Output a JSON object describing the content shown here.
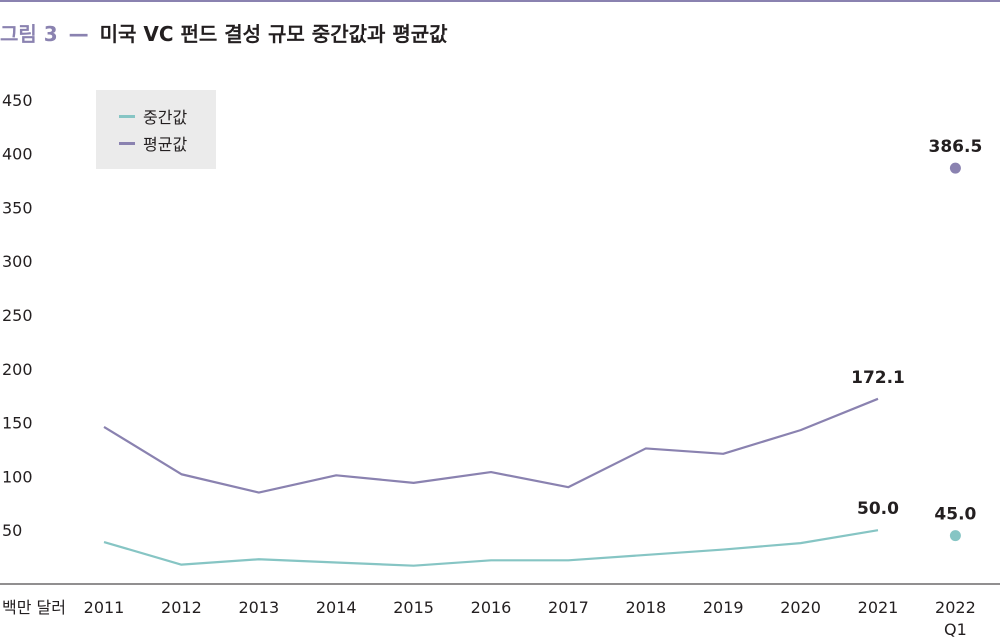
{
  "figure": {
    "label": "그림 3",
    "dash": "—",
    "title": "미국 VC 펀드 결성 규모 중간값과 평균값"
  },
  "chart_data": {
    "type": "line",
    "ylabel": "백만 달러",
    "ylim": [
      0,
      450
    ],
    "yticks": [
      "50",
      "100",
      "150",
      "200",
      "250",
      "300",
      "350",
      "400",
      "450"
    ],
    "categories": [
      "2011",
      "2012",
      "2013",
      "2014",
      "2015",
      "2016",
      "2017",
      "2018",
      "2019",
      "2020",
      "2021",
      "2022\nQ1"
    ],
    "legend_position": "top-left",
    "grid": false,
    "series": [
      {
        "name": "중간값",
        "color": "#86c5c4",
        "values": [
          39,
          18,
          23,
          20,
          17,
          22,
          22,
          27,
          32,
          38,
          50.0,
          45.0
        ],
        "point_only_last": true,
        "labels": [
          {
            "index": 10,
            "text": "50.0"
          },
          {
            "index": 11,
            "text": "45.0"
          }
        ]
      },
      {
        "name": "평균값",
        "color": "#8a82b0",
        "values": [
          146,
          102,
          85,
          101,
          94,
          104,
          90,
          126,
          121,
          143,
          172.1,
          386.5
        ],
        "point_only_last": true,
        "labels": [
          {
            "index": 10,
            "text": "172.1"
          },
          {
            "index": 11,
            "text": "386.5"
          }
        ]
      }
    ]
  }
}
